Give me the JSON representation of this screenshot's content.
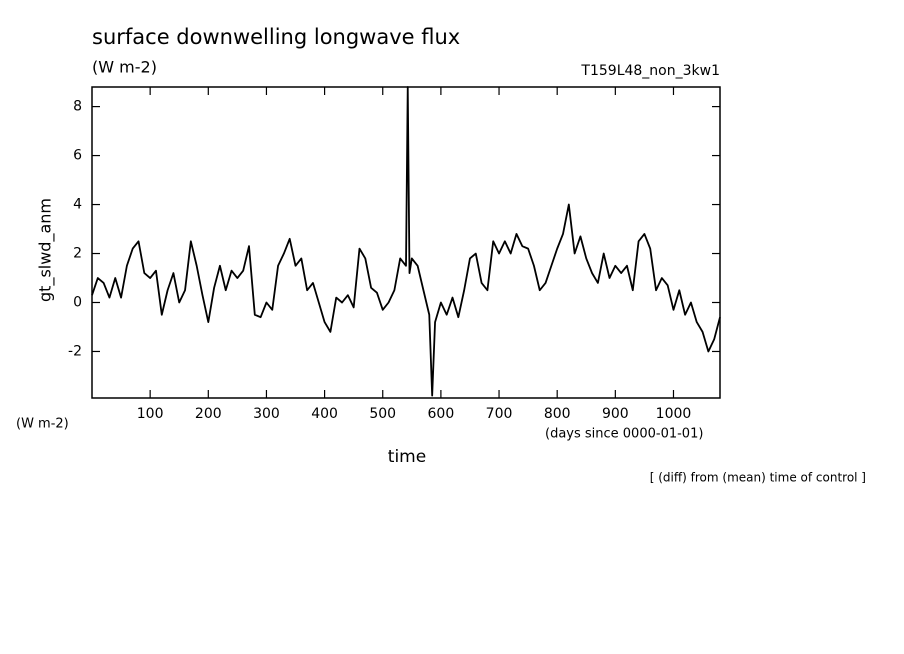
{
  "chart_data": {
    "type": "line",
    "title": "surface downwelling longwave flux",
    "subtitle": "(W m-2)",
    "run_label": "T159L48_non_3kw1",
    "y_label": "gt_slwd_anm",
    "y_unit": "(W m-2)",
    "x_label": "time",
    "x_unit": "(days since 0000-01-01)",
    "note": "[ (diff) from (mean) time of control ]",
    "xlim": [
      0,
      1080
    ],
    "ylim": [
      -3.9,
      8.8
    ],
    "xticks": [
      100,
      200,
      300,
      400,
      500,
      600,
      700,
      800,
      900,
      1000
    ],
    "yticks": [
      -2,
      0,
      2,
      4,
      6,
      8
    ],
    "x": [
      0,
      10,
      20,
      30,
      40,
      50,
      60,
      70,
      80,
      90,
      100,
      110,
      120,
      130,
      140,
      150,
      160,
      170,
      180,
      190,
      200,
      210,
      220,
      230,
      240,
      250,
      260,
      270,
      280,
      290,
      300,
      310,
      320,
      330,
      340,
      350,
      360,
      370,
      380,
      390,
      400,
      410,
      420,
      430,
      440,
      450,
      460,
      470,
      480,
      490,
      500,
      510,
      520,
      530,
      540,
      543,
      546,
      550,
      560,
      570,
      580,
      585,
      590,
      600,
      610,
      620,
      630,
      640,
      650,
      660,
      670,
      680,
      690,
      700,
      710,
      720,
      730,
      740,
      750,
      760,
      770,
      780,
      790,
      800,
      810,
      820,
      830,
      840,
      850,
      860,
      870,
      880,
      890,
      900,
      910,
      920,
      930,
      940,
      950,
      960,
      970,
      980,
      990,
      1000,
      1010,
      1020,
      1030,
      1040,
      1050,
      1060,
      1070,
      1080
    ],
    "series": [
      {
        "color": "#000000",
        "values": [
          0.3,
          1.0,
          0.8,
          0.2,
          1.0,
          0.2,
          1.5,
          2.2,
          2.5,
          1.2,
          1.0,
          1.3,
          -0.5,
          0.5,
          1.2,
          0.0,
          0.5,
          2.5,
          1.5,
          0.3,
          -0.8,
          0.6,
          1.5,
          0.5,
          1.3,
          1.0,
          1.3,
          2.3,
          -0.5,
          -0.6,
          0.0,
          -0.3,
          1.5,
          2.0,
          2.6,
          1.5,
          1.8,
          0.5,
          0.8,
          0.0,
          -0.8,
          -1.2,
          0.2,
          0.0,
          0.3,
          -0.2,
          2.2,
          1.8,
          0.6,
          0.4,
          -0.3,
          0.0,
          0.5,
          1.8,
          1.5,
          8.8,
          1.2,
          1.8,
          1.5,
          0.5,
          -0.5,
          -3.8,
          -0.8,
          0.0,
          -0.5,
          0.2,
          -0.6,
          0.5,
          1.8,
          2.0,
          0.8,
          0.5,
          2.5,
          2.0,
          2.5,
          2.0,
          2.8,
          2.3,
          2.2,
          1.5,
          0.5,
          0.8,
          1.5,
          2.2,
          2.8,
          4.0,
          2.0,
          2.7,
          1.8,
          1.2,
          0.8,
          2.0,
          1.0,
          1.5,
          1.2,
          1.5,
          0.5,
          2.5,
          2.8,
          2.2,
          0.5,
          1.0,
          0.7,
          -0.3,
          0.5,
          -0.5,
          0.0,
          -0.8,
          -1.2,
          -2.0,
          -1.5,
          -0.6
        ]
      }
    ]
  }
}
